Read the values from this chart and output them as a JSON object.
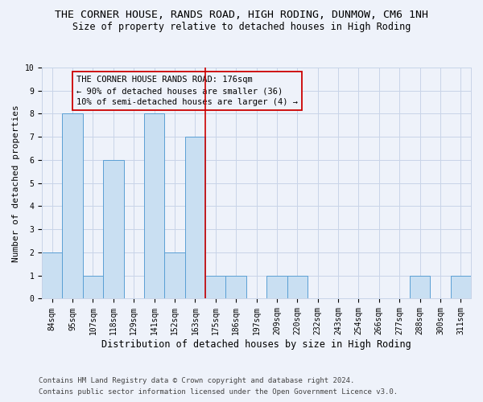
{
  "title": "THE CORNER HOUSE, RANDS ROAD, HIGH RODING, DUNMOW, CM6 1NH",
  "subtitle": "Size of property relative to detached houses in High Roding",
  "xlabel": "Distribution of detached houses by size in High Roding",
  "ylabel": "Number of detached properties",
  "categories": [
    "84sqm",
    "95sqm",
    "107sqm",
    "118sqm",
    "129sqm",
    "141sqm",
    "152sqm",
    "163sqm",
    "175sqm",
    "186sqm",
    "197sqm",
    "209sqm",
    "220sqm",
    "232sqm",
    "243sqm",
    "254sqm",
    "266sqm",
    "277sqm",
    "288sqm",
    "300sqm",
    "311sqm"
  ],
  "values": [
    2,
    8,
    1,
    6,
    0,
    8,
    2,
    7,
    1,
    1,
    0,
    1,
    1,
    0,
    0,
    0,
    0,
    0,
    1,
    0,
    1
  ],
  "bar_color": "#c9dff2",
  "bar_edge_color": "#5a9fd4",
  "reference_line_color": "#cc0000",
  "annotation_text": "THE CORNER HOUSE RANDS ROAD: 176sqm\n← 90% of detached houses are smaller (36)\n10% of semi-detached houses are larger (4) →",
  "annotation_box_color": "#cc0000",
  "ylim": [
    0,
    10
  ],
  "yticks": [
    0,
    1,
    2,
    3,
    4,
    5,
    6,
    7,
    8,
    9,
    10
  ],
  "footnote1": "Contains HM Land Registry data © Crown copyright and database right 2024.",
  "footnote2": "Contains public sector information licensed under the Open Government Licence v3.0.",
  "bg_color": "#eef2fa",
  "grid_color": "#c8d4e8",
  "title_fontsize": 9.5,
  "subtitle_fontsize": 8.5,
  "axis_label_fontsize": 8,
  "tick_fontsize": 7,
  "annotation_fontsize": 7.5,
  "footnote_fontsize": 6.5
}
